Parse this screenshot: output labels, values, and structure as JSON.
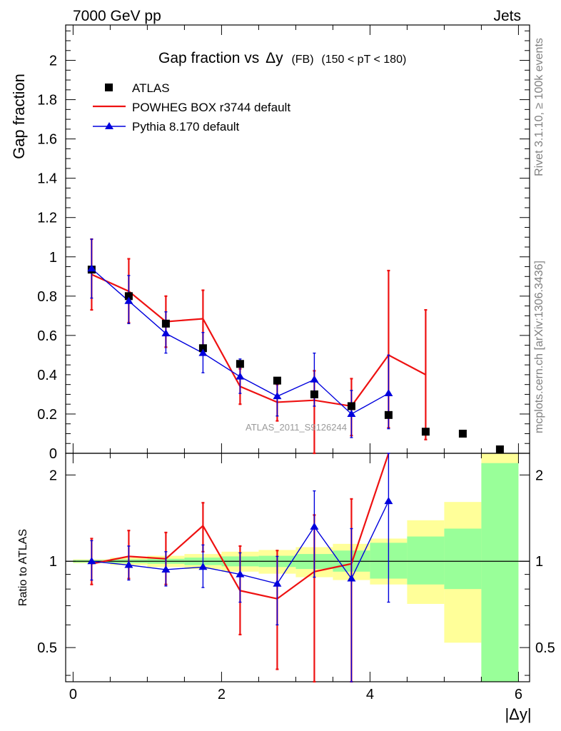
{
  "header": {
    "left": "7000 GeV pp",
    "right": "Jets"
  },
  "side_labels": {
    "top": "Rivet 3.1.10, ≥ 100k events",
    "bottom": "mcplots.cern.ch [arXiv:1306.3436]"
  },
  "chart_data": {
    "type": "line",
    "title_main": "Gap fraction vs",
    "title_var": "Δy",
    "title_sub1": "(FB)",
    "title_sub2": "(150 < pT < 180)",
    "watermark": "ATLAS_2011_S9126244",
    "xlabel": "|Δy|",
    "ylabel": "Gap fraction",
    "ratio_ylabel": "Ratio to ATLAS",
    "xlim": [
      -0.1,
      6.15
    ],
    "ylim": [
      0,
      2.18
    ],
    "ratio_ylim": [
      0.38,
      2.38
    ],
    "ratio_scale": "log",
    "x_ticks": [
      0,
      2,
      4,
      6
    ],
    "x_tick_labels": [
      "0",
      "2",
      "4",
      "6"
    ],
    "y_ticks": [
      0,
      0.2,
      0.4,
      0.6,
      0.8,
      1,
      1.2,
      1.4,
      1.6,
      1.8,
      2
    ],
    "y_tick_labels": [
      "0",
      "0.2",
      "0.4",
      "0.6",
      "0.8",
      "1",
      "1.2",
      "1.4",
      "1.6",
      "1.8",
      "2"
    ],
    "ratio_ticks": [
      0.5,
      1,
      2
    ],
    "ratio_tick_labels": [
      "0.5",
      "1",
      "2"
    ],
    "bin_edges": [
      0,
      0.5,
      1,
      1.5,
      2,
      2.5,
      3,
      3.5,
      4,
      4.5,
      5,
      5.5,
      6
    ],
    "series": [
      {
        "name": "ATLAS",
        "kind": "data",
        "color": "#000000",
        "x": [
          0.25,
          0.75,
          1.25,
          1.75,
          2.25,
          2.75,
          3.25,
          3.75,
          4.25,
          4.75,
          5.25,
          5.75
        ],
        "values": [
          0.935,
          0.8,
          0.66,
          0.535,
          0.455,
          0.37,
          0.3,
          0.24,
          0.195,
          0.11,
          0.1,
          0.02
        ]
      },
      {
        "name": "POWHEG BOX r3744 default",
        "kind": "line",
        "color": "#ee1111",
        "x": [
          0.25,
          0.75,
          1.25,
          1.75,
          2.25,
          2.75,
          3.25,
          3.75,
          4.25,
          4.75
        ],
        "values": [
          0.91,
          0.825,
          0.67,
          0.685,
          0.34,
          0.26,
          0.27,
          0.24,
          0.5,
          0.4
        ],
        "err_lo": [
          0.73,
          0.665,
          0.54,
          0.54,
          0.25,
          0.165,
          0.0,
          0.09,
          0.13,
          0.07
        ],
        "err_hi": [
          1.09,
          0.99,
          0.8,
          0.83,
          0.43,
          0.35,
          0.42,
          0.38,
          0.93,
          0.73
        ],
        "ratio": [
          0.98,
          1.04,
          1.02,
          1.33,
          0.79,
          0.74,
          0.92,
          0.98,
          2.5,
          null
        ],
        "ratio_lo": [
          0.83,
          0.87,
          0.83,
          1.08,
          0.555,
          0.42,
          0.0,
          0.0,
          null,
          null
        ],
        "ratio_hi": [
          1.2,
          1.28,
          1.26,
          1.6,
          1.13,
          1.09,
          1.45,
          1.65,
          null,
          null
        ]
      },
      {
        "name": "Pythia 8.170 default",
        "kind": "line-marker",
        "color": "#0000dd",
        "x": [
          0.25,
          0.75,
          1.25,
          1.75,
          2.25,
          2.75,
          3.25,
          3.75,
          4.25
        ],
        "values": [
          0.94,
          0.775,
          0.61,
          0.51,
          0.39,
          0.29,
          0.375,
          0.2,
          0.305
        ],
        "err_lo": [
          0.79,
          0.66,
          0.51,
          0.41,
          0.305,
          0.19,
          0.24,
          0.08,
          0.125
        ],
        "err_hi": [
          1.09,
          0.905,
          0.72,
          0.615,
          0.48,
          0.38,
          0.51,
          0.32,
          0.5
        ],
        "ratio": [
          1.0,
          0.97,
          0.935,
          0.955,
          0.9,
          0.835,
          1.32,
          0.87,
          1.62
        ],
        "ratio_lo": [
          0.86,
          0.86,
          0.82,
          0.81,
          0.72,
          0.6,
          0.88,
          0.38,
          0.72
        ],
        "ratio_hi": [
          1.18,
          1.13,
          1.08,
          1.14,
          1.07,
          1.04,
          1.76,
          1.3,
          2.5
        ]
      }
    ],
    "uncertainty_bands": {
      "inner_color": "#99ff99",
      "outer_color": "#ffff99",
      "inner_lo": [
        0.99,
        0.985,
        0.98,
        0.97,
        0.96,
        0.955,
        0.94,
        0.92,
        0.87,
        0.83,
        0.8,
        0.38
      ],
      "inner_hi": [
        1.01,
        1.015,
        1.02,
        1.03,
        1.04,
        1.045,
        1.06,
        1.09,
        1.16,
        1.22,
        1.3,
        2.2
      ],
      "outer_lo": [
        0.985,
        0.97,
        0.955,
        0.94,
        0.92,
        0.905,
        0.88,
        0.86,
        0.83,
        0.71,
        0.52,
        0.38
      ],
      "outer_hi": [
        1.015,
        1.03,
        1.045,
        1.06,
        1.08,
        1.095,
        1.12,
        1.15,
        1.2,
        1.39,
        1.61,
        2.38
      ]
    }
  }
}
